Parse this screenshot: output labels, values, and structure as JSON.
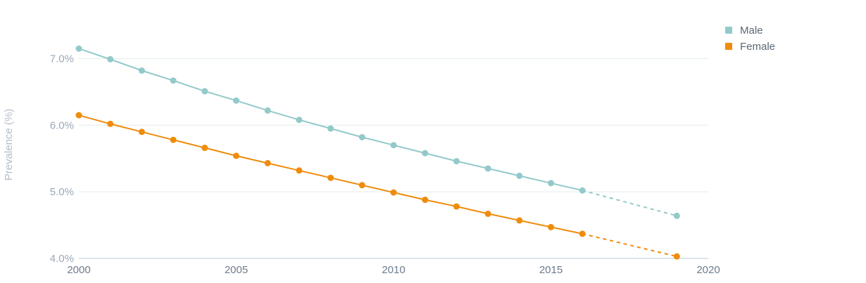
{
  "chart_data": {
    "type": "line",
    "title": "",
    "xlabel": "",
    "ylabel": "Prevalence (%)",
    "xlim": [
      2000,
      2020
    ],
    "ylim": [
      4.0,
      7.5
    ],
    "x_ticks": [
      2000,
      2005,
      2010,
      2015,
      2020
    ],
    "x_tick_labels": [
      "2000",
      "2005",
      "2010",
      "2015",
      "2020"
    ],
    "y_ticks": [
      4.0,
      5.0,
      6.0,
      7.0
    ],
    "y_tick_labels": [
      "4.0%",
      "5.0%",
      "6.0%",
      "7.0%"
    ],
    "grid": true,
    "legend_position": "top-right",
    "series": [
      {
        "name": "Male",
        "color": "#93c9c9",
        "x": [
          2000,
          2001,
          2002,
          2003,
          2004,
          2005,
          2006,
          2007,
          2008,
          2009,
          2010,
          2011,
          2012,
          2013,
          2014,
          2015,
          2016
        ],
        "values": [
          7.15,
          6.99,
          6.82,
          6.67,
          6.51,
          6.37,
          6.22,
          6.08,
          5.95,
          5.82,
          5.7,
          5.58,
          5.46,
          5.35,
          5.24,
          5.13,
          5.02
        ],
        "projection_x": [
          2016,
          2019
        ],
        "projection_values": [
          5.02,
          4.64
        ]
      },
      {
        "name": "Female",
        "color": "#ef8c0c",
        "x": [
          2000,
          2001,
          2002,
          2003,
          2004,
          2005,
          2006,
          2007,
          2008,
          2009,
          2010,
          2011,
          2012,
          2013,
          2014,
          2015,
          2016
        ],
        "values": [
          6.15,
          6.02,
          5.9,
          5.78,
          5.66,
          5.54,
          5.43,
          5.32,
          5.21,
          5.1,
          4.99,
          4.88,
          4.78,
          4.67,
          4.57,
          4.47,
          4.37
        ],
        "projection_x": [
          2016,
          2019
        ],
        "projection_values": [
          4.37,
          4.03
        ]
      }
    ]
  }
}
